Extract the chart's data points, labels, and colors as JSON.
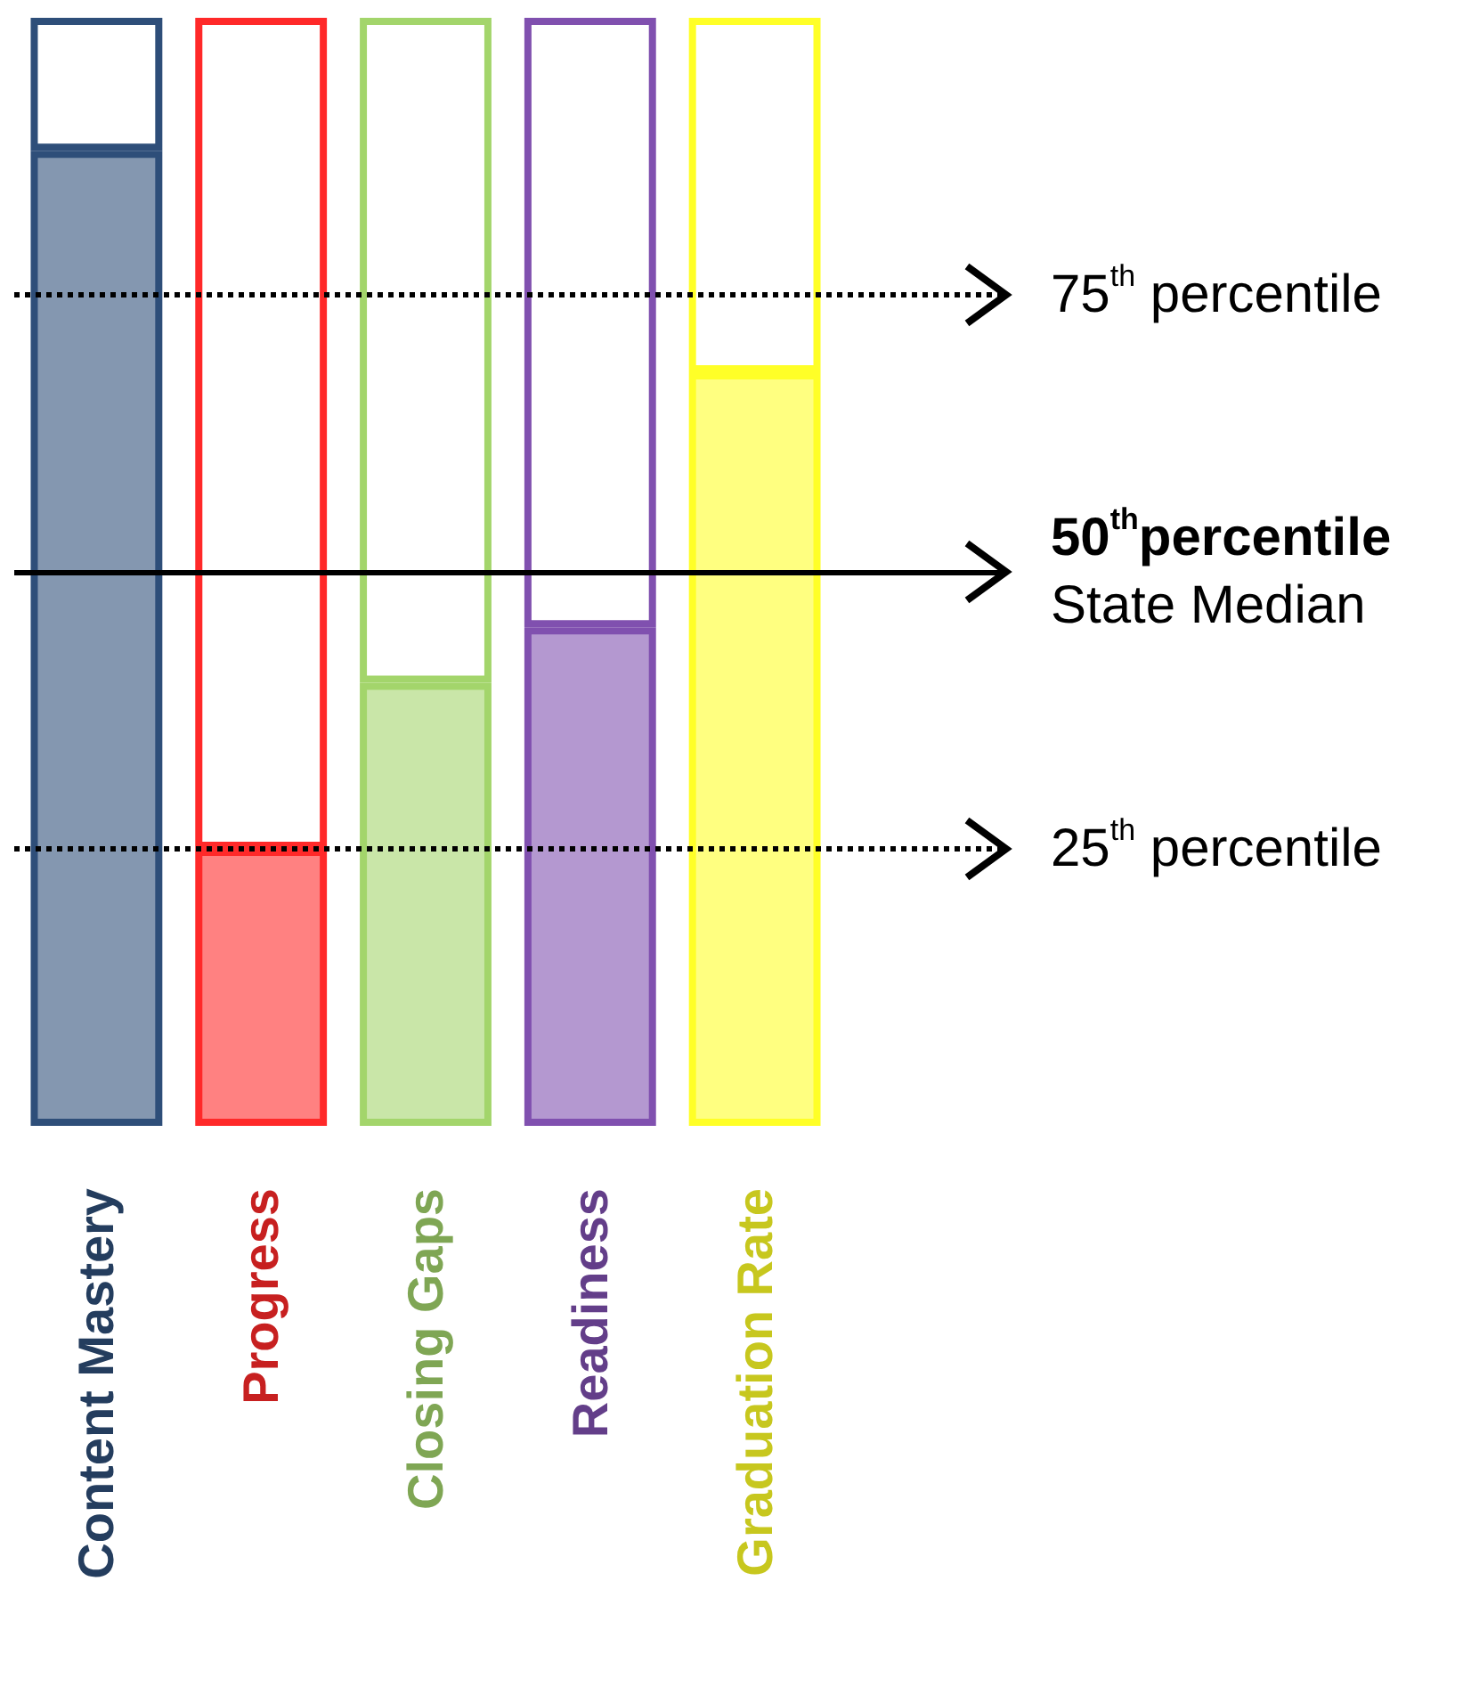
{
  "chart_data": {
    "type": "bar",
    "categories": [
      "Content Mastery",
      "Progress",
      "Closing Gaps",
      "Readiness",
      "Graduation Rate"
    ],
    "stacked": true,
    "series": [
      {
        "colors": [
          "#8497b0",
          "#ff8181",
          "#c9e6a8",
          "#b498d0",
          "#ffff80"
        ],
        "values": [
          88,
          25,
          40,
          45,
          68
        ]
      },
      {
        "color": "#ffffff",
        "values": [
          12,
          75,
          60,
          55,
          32
        ]
      }
    ],
    "ylim": [
      0,
      100
    ],
    "tick_labels": "x",
    "ref_lines": [
      {
        "axis": "y",
        "value": 75,
        "label": "75$^{th}$ percentile",
        "line_style": "dotted",
        "color": "#000000"
      },
      {
        "axis": "y",
        "value": 50,
        "label": "50$^{th}$percentile\nState Median",
        "line_style": "solid",
        "color": "#000000"
      },
      {
        "axis": "y",
        "value": 25,
        "label": "25$^{th}$ percentile",
        "line_style": "dotted",
        "color": "#000000"
      }
    ]
  }
}
